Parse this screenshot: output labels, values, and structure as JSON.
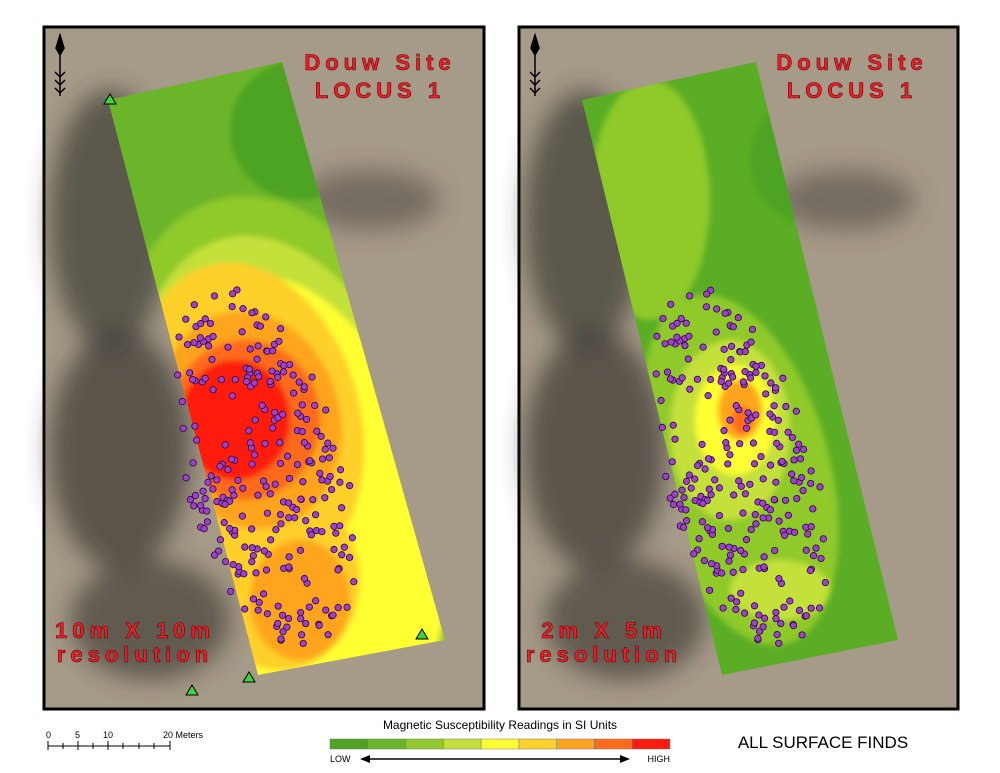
{
  "panels": [
    {
      "title": "Douw Site",
      "subtitle": "LOCUS 1",
      "resolution_line1": "10m X 10m",
      "resolution_line2": "resolution"
    },
    {
      "title": "Douw Site",
      "subtitle": "LOCUS 1",
      "resolution_line1": "2m X 5m",
      "resolution_line2": "resolution"
    }
  ],
  "scale_bar": {
    "labels": [
      "0",
      "5",
      "10",
      "20 Meters"
    ]
  },
  "legend": {
    "title": "Magnetic Susceptibility Readings in SI Units",
    "low": "LOW",
    "high": "HIGH",
    "colors": [
      "#4ea320",
      "#6cb52a",
      "#8fc92c",
      "#c4e03a",
      "#ffff33",
      "#ffcf2a",
      "#ffa41f",
      "#ff6b1a",
      "#ff1a10"
    ]
  },
  "caption": "ALL SURFACE FINDS"
}
